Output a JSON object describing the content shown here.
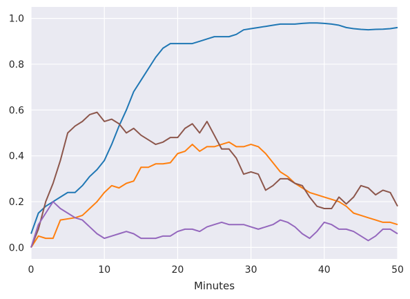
{
  "chart_data": {
    "type": "line",
    "title": "",
    "xlabel": "Minutes",
    "ylabel": "",
    "xlim": [
      0,
      50
    ],
    "ylim": [
      -0.05,
      1.05
    ],
    "xticks": [
      0,
      10,
      20,
      30,
      40,
      50
    ],
    "yticks": [
      0.0,
      0.2,
      0.4,
      0.6,
      0.8,
      1.0
    ],
    "xtick_labels": [
      "0",
      "10",
      "20",
      "30",
      "40",
      "50"
    ],
    "ytick_labels": [
      "0.0",
      "0.2",
      "0.4",
      "0.6",
      "0.8",
      "1.0"
    ],
    "grid": true,
    "background": "#eaeaf2",
    "series": [
      {
        "color": "#1f77b4",
        "x": [
          0,
          1,
          2,
          3,
          4,
          5,
          6,
          7,
          8,
          9,
          10,
          11,
          12,
          13,
          14,
          15,
          16,
          17,
          18,
          19,
          20,
          21,
          22,
          23,
          24,
          25,
          26,
          27,
          28,
          29,
          30,
          31,
          32,
          33,
          34,
          35,
          36,
          37,
          38,
          39,
          40,
          41,
          42,
          43,
          44,
          45,
          46,
          47,
          48,
          49,
          50
        ],
        "y": [
          0.06,
          0.15,
          0.18,
          0.2,
          0.22,
          0.24,
          0.24,
          0.27,
          0.31,
          0.34,
          0.38,
          0.45,
          0.53,
          0.6,
          0.68,
          0.73,
          0.78,
          0.83,
          0.87,
          0.89,
          0.89,
          0.89,
          0.89,
          0.9,
          0.91,
          0.92,
          0.92,
          0.92,
          0.93,
          0.95,
          0.955,
          0.96,
          0.965,
          0.97,
          0.975,
          0.975,
          0.975,
          0.978,
          0.98,
          0.98,
          0.978,
          0.975,
          0.97,
          0.96,
          0.955,
          0.952,
          0.95,
          0.952,
          0.953,
          0.955,
          0.96
        ]
      },
      {
        "color": "#ff7f0e",
        "x": [
          0,
          1,
          2,
          3,
          4,
          5,
          6,
          7,
          8,
          9,
          10,
          11,
          12,
          13,
          14,
          15,
          16,
          17,
          18,
          19,
          20,
          21,
          22,
          23,
          24,
          25,
          26,
          27,
          28,
          29,
          30,
          31,
          32,
          33,
          34,
          35,
          36,
          37,
          38,
          39,
          40,
          41,
          42,
          43,
          44,
          45,
          46,
          47,
          48,
          49,
          50
        ],
        "y": [
          0.0,
          0.05,
          0.04,
          0.04,
          0.12,
          0.125,
          0.13,
          0.14,
          0.17,
          0.2,
          0.24,
          0.27,
          0.26,
          0.28,
          0.29,
          0.35,
          0.35,
          0.365,
          0.365,
          0.37,
          0.41,
          0.42,
          0.45,
          0.42,
          0.44,
          0.44,
          0.45,
          0.46,
          0.44,
          0.44,
          0.45,
          0.44,
          0.41,
          0.37,
          0.33,
          0.31,
          0.28,
          0.26,
          0.24,
          0.23,
          0.22,
          0.21,
          0.2,
          0.18,
          0.15,
          0.14,
          0.13,
          0.12,
          0.11,
          0.11,
          0.1
        ]
      },
      {
        "color": "#8c564b",
        "x": [
          0,
          1,
          2,
          3,
          4,
          5,
          6,
          7,
          8,
          9,
          10,
          11,
          12,
          13,
          14,
          15,
          16,
          17,
          18,
          19,
          20,
          21,
          22,
          23,
          24,
          25,
          26,
          27,
          28,
          29,
          30,
          31,
          32,
          33,
          34,
          35,
          36,
          37,
          38,
          39,
          40,
          41,
          42,
          43,
          44,
          45,
          46,
          47,
          48,
          49,
          50
        ],
        "y": [
          0.0,
          0.08,
          0.2,
          0.28,
          0.38,
          0.5,
          0.53,
          0.55,
          0.58,
          0.59,
          0.55,
          0.56,
          0.54,
          0.5,
          0.52,
          0.49,
          0.47,
          0.45,
          0.46,
          0.48,
          0.48,
          0.52,
          0.54,
          0.5,
          0.55,
          0.49,
          0.43,
          0.43,
          0.39,
          0.32,
          0.33,
          0.32,
          0.25,
          0.27,
          0.3,
          0.3,
          0.28,
          0.27,
          0.22,
          0.18,
          0.17,
          0.17,
          0.22,
          0.19,
          0.22,
          0.27,
          0.26,
          0.23,
          0.25,
          0.24,
          0.18
        ]
      },
      {
        "color": "#9467bd",
        "x": [
          0,
          1,
          2,
          3,
          4,
          5,
          6,
          7,
          8,
          9,
          10,
          11,
          12,
          13,
          14,
          15,
          16,
          17,
          18,
          19,
          20,
          21,
          22,
          23,
          24,
          25,
          26,
          27,
          28,
          29,
          30,
          31,
          32,
          33,
          34,
          35,
          36,
          37,
          38,
          39,
          40,
          41,
          42,
          43,
          44,
          45,
          46,
          47,
          48,
          49,
          50
        ],
        "y": [
          0.0,
          0.1,
          0.15,
          0.2,
          0.17,
          0.15,
          0.13,
          0.12,
          0.09,
          0.06,
          0.04,
          0.05,
          0.06,
          0.07,
          0.06,
          0.04,
          0.04,
          0.04,
          0.05,
          0.05,
          0.07,
          0.08,
          0.08,
          0.07,
          0.09,
          0.1,
          0.11,
          0.1,
          0.1,
          0.1,
          0.09,
          0.08,
          0.09,
          0.1,
          0.12,
          0.11,
          0.09,
          0.06,
          0.04,
          0.07,
          0.11,
          0.1,
          0.08,
          0.08,
          0.07,
          0.05,
          0.03,
          0.05,
          0.08,
          0.08,
          0.06
        ]
      }
    ]
  }
}
